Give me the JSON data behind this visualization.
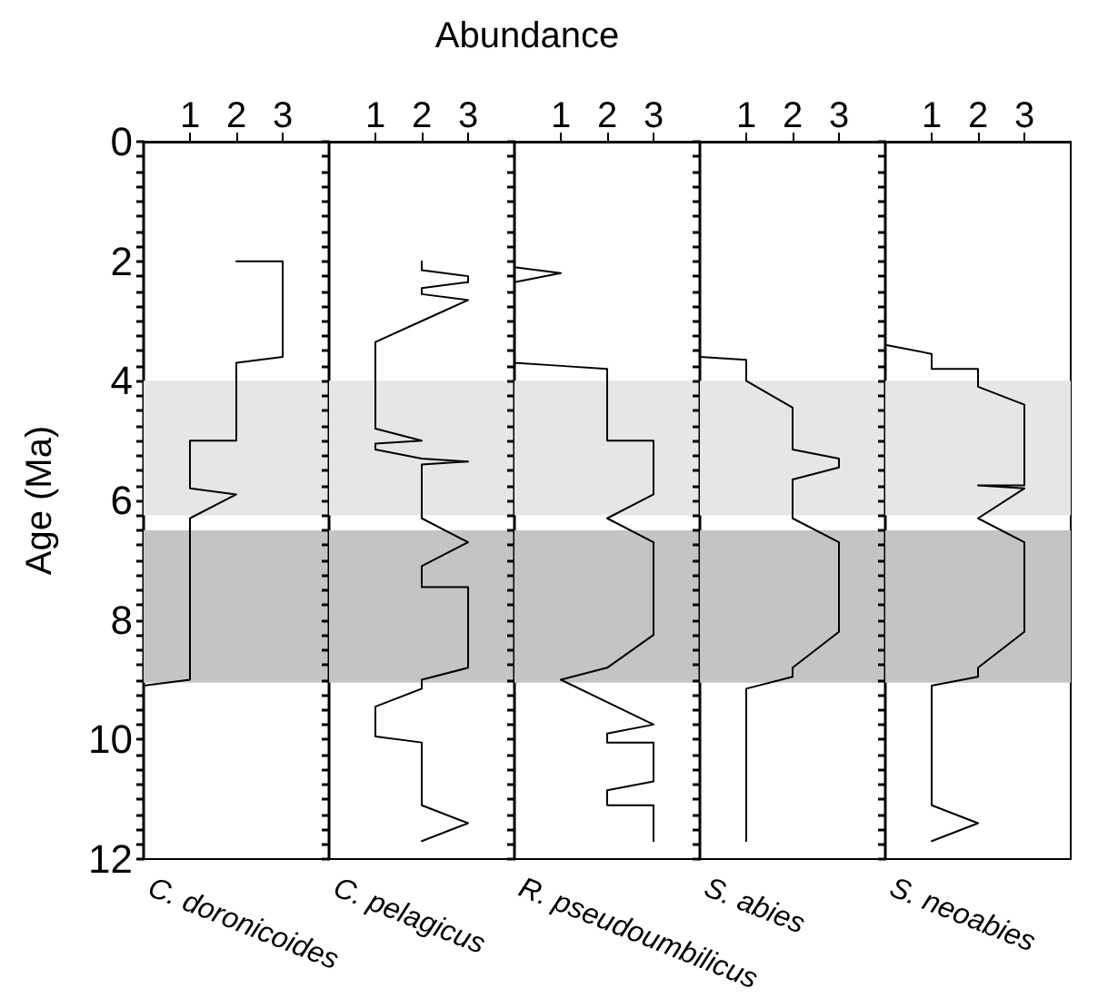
{
  "chart_data": [
    {
      "type": "line",
      "title": "C. doronicoides",
      "ylabel": "Age (Ma)",
      "xlim": [
        0,
        4
      ],
      "xticks": [
        1,
        2,
        3
      ],
      "ylim": [
        12,
        0
      ],
      "grid": false,
      "marker": "none",
      "line_style": "solid",
      "yticks": [
        0,
        {
          "value": 0.25,
          "label": null
        },
        {
          "value": 0.5,
          "label": null
        },
        {
          "value": 0.75,
          "label": null
        },
        {
          "value": 1,
          "label": null
        },
        {
          "value": 1.25,
          "label": null
        },
        {
          "value": 1.5,
          "label": null
        },
        {
          "value": 1.75,
          "label": null
        },
        2,
        {
          "value": 2.25,
          "label": null
        },
        {
          "value": 2.5,
          "label": null
        },
        {
          "value": 2.75,
          "label": null
        },
        {
          "value": 3,
          "label": null
        },
        {
          "value": 3.25,
          "label": null
        },
        {
          "value": 3.5,
          "label": null
        },
        {
          "value": 3.75,
          "label": null
        },
        4,
        {
          "value": 4.25,
          "label": null
        },
        {
          "value": 4.5,
          "label": null
        },
        {
          "value": 4.75,
          "label": null
        },
        {
          "value": 5,
          "label": null
        },
        {
          "value": 5.25,
          "label": null
        },
        {
          "value": 5.5,
          "label": null
        },
        {
          "value": 5.75,
          "label": null
        },
        6,
        {
          "value": 6.25,
          "label": null
        },
        {
          "value": 6.5,
          "label": null
        },
        {
          "value": 6.75,
          "label": null
        },
        {
          "value": 7,
          "label": null
        },
        {
          "value": 7.25,
          "label": null
        },
        {
          "value": 7.5,
          "label": null
        },
        {
          "value": 7.75,
          "label": null
        },
        8,
        {
          "value": 8.25,
          "label": null
        },
        {
          "value": 8.5,
          "label": null
        },
        {
          "value": 8.75,
          "label": null
        },
        {
          "value": 9,
          "label": null
        },
        {
          "value": 9.25,
          "label": null
        },
        {
          "value": 9.5,
          "label": null
        },
        {
          "value": 9.75,
          "label": null
        },
        10,
        {
          "value": 10.25,
          "label": null
        },
        {
          "value": 10.5,
          "label": null
        },
        {
          "value": 10.75,
          "label": null
        },
        {
          "value": 11,
          "label": null
        },
        {
          "value": 11.25,
          "label": null
        },
        {
          "value": 11.5,
          "label": null
        },
        {
          "value": 11.75,
          "label": null
        },
        12
      ],
      "bands": [
        {
          "axis": "y",
          "from": 4.0,
          "to": 6.25,
          "color": "#e6e6e6"
        },
        {
          "axis": "y",
          "from": 6.5,
          "to": 9.05,
          "color": "#c4c4c4"
        }
      ],
      "series": [
        {
          "color": "#000000",
          "x": [
            2,
            3,
            3,
            2,
            2,
            1,
            1,
            2,
            1,
            1,
            0
          ],
          "values": [
            2.0,
            2.0,
            3.6,
            3.7,
            5.0,
            5.0,
            5.8,
            5.9,
            6.3,
            9.0,
            9.1
          ]
        }
      ]
    },
    {
      "type": "line",
      "title": "C. pelagicus",
      "tick_labels": "x",
      "xlim": [
        0,
        4
      ],
      "xticks": [
        1,
        2,
        3
      ],
      "ylim": [
        12,
        0
      ],
      "grid": false,
      "marker": "none",
      "line_style": "solid",
      "yticks": [
        0,
        {
          "value": 0.25,
          "label": null
        },
        {
          "value": 0.5,
          "label": null
        },
        {
          "value": 0.75,
          "label": null
        },
        {
          "value": 1,
          "label": null
        },
        {
          "value": 1.25,
          "label": null
        },
        {
          "value": 1.5,
          "label": null
        },
        {
          "value": 1.75,
          "label": null
        },
        2,
        {
          "value": 2.25,
          "label": null
        },
        {
          "value": 2.5,
          "label": null
        },
        {
          "value": 2.75,
          "label": null
        },
        {
          "value": 3,
          "label": null
        },
        {
          "value": 3.25,
          "label": null
        },
        {
          "value": 3.5,
          "label": null
        },
        {
          "value": 3.75,
          "label": null
        },
        4,
        {
          "value": 4.25,
          "label": null
        },
        {
          "value": 4.5,
          "label": null
        },
        {
          "value": 4.75,
          "label": null
        },
        {
          "value": 5,
          "label": null
        },
        {
          "value": 5.25,
          "label": null
        },
        {
          "value": 5.5,
          "label": null
        },
        {
          "value": 5.75,
          "label": null
        },
        6,
        {
          "value": 6.25,
          "label": null
        },
        {
          "value": 6.5,
          "label": null
        },
        {
          "value": 6.75,
          "label": null
        },
        {
          "value": 7,
          "label": null
        },
        {
          "value": 7.25,
          "label": null
        },
        {
          "value": 7.5,
          "label": null
        },
        {
          "value": 7.75,
          "label": null
        },
        8,
        {
          "value": 8.25,
          "label": null
        },
        {
          "value": 8.5,
          "label": null
        },
        {
          "value": 8.75,
          "label": null
        },
        {
          "value": 9,
          "label": null
        },
        {
          "value": 9.25,
          "label": null
        },
        {
          "value": 9.5,
          "label": null
        },
        {
          "value": 9.75,
          "label": null
        },
        10,
        {
          "value": 10.25,
          "label": null
        },
        {
          "value": 10.5,
          "label": null
        },
        {
          "value": 10.75,
          "label": null
        },
        {
          "value": 11,
          "label": null
        },
        {
          "value": 11.25,
          "label": null
        },
        {
          "value": 11.5,
          "label": null
        },
        {
          "value": 11.75,
          "label": null
        },
        12
      ],
      "bands": [
        {
          "axis": "y",
          "from": 4.0,
          "to": 6.25,
          "color": "#e6e6e6"
        },
        {
          "axis": "y",
          "from": 6.5,
          "to": 9.05,
          "color": "#c4c4c4"
        }
      ],
      "series": [
        {
          "color": "#000000",
          "x": [
            2,
            2,
            3,
            3,
            2,
            2,
            3,
            2,
            1,
            1,
            2,
            1,
            1,
            2,
            3,
            2,
            2,
            3,
            2,
            2,
            3,
            3,
            2,
            2,
            1,
            1,
            2,
            2,
            3,
            2
          ],
          "values": [
            2.0,
            2.15,
            2.25,
            2.35,
            2.45,
            2.55,
            2.65,
            3.0,
            3.35,
            4.8,
            5.0,
            5.05,
            5.15,
            5.3,
            5.35,
            5.4,
            6.3,
            6.7,
            7.1,
            7.45,
            7.45,
            8.8,
            9.0,
            9.15,
            9.45,
            9.95,
            10.05,
            11.1,
            11.4,
            11.7
          ]
        }
      ]
    },
    {
      "type": "line",
      "title": "R. pseudoumbilicus",
      "xlabel": "Abundance",
      "tick_labels": "x",
      "xlim": [
        0,
        4
      ],
      "xticks": [
        1,
        2,
        3
      ],
      "ylim": [
        12,
        0
      ],
      "grid": false,
      "marker": "none",
      "line_style": "solid",
      "yticks": [
        0,
        {
          "value": 0.25,
          "label": null
        },
        {
          "value": 0.5,
          "label": null
        },
        {
          "value": 0.75,
          "label": null
        },
        {
          "value": 1,
          "label": null
        },
        {
          "value": 1.25,
          "label": null
        },
        {
          "value": 1.5,
          "label": null
        },
        {
          "value": 1.75,
          "label": null
        },
        2,
        {
          "value": 2.25,
          "label": null
        },
        {
          "value": 2.5,
          "label": null
        },
        {
          "value": 2.75,
          "label": null
        },
        {
          "value": 3,
          "label": null
        },
        {
          "value": 3.25,
          "label": null
        },
        {
          "value": 3.5,
          "label": null
        },
        {
          "value": 3.75,
          "label": null
        },
        4,
        {
          "value": 4.25,
          "label": null
        },
        {
          "value": 4.5,
          "label": null
        },
        {
          "value": 4.75,
          "label": null
        },
        {
          "value": 5,
          "label": null
        },
        {
          "value": 5.25,
          "label": null
        },
        {
          "value": 5.5,
          "label": null
        },
        {
          "value": 5.75,
          "label": null
        },
        6,
        {
          "value": 6.25,
          "label": null
        },
        {
          "value": 6.5,
          "label": null
        },
        {
          "value": 6.75,
          "label": null
        },
        {
          "value": 7,
          "label": null
        },
        {
          "value": 7.25,
          "label": null
        },
        {
          "value": 7.5,
          "label": null
        },
        {
          "value": 7.75,
          "label": null
        },
        8,
        {
          "value": 8.25,
          "label": null
        },
        {
          "value": 8.5,
          "label": null
        },
        {
          "value": 8.75,
          "label": null
        },
        {
          "value": 9,
          "label": null
        },
        {
          "value": 9.25,
          "label": null
        },
        {
          "value": 9.5,
          "label": null
        },
        {
          "value": 9.75,
          "label": null
        },
        10,
        {
          "value": 10.25,
          "label": null
        },
        {
          "value": 10.5,
          "label": null
        },
        {
          "value": 10.75,
          "label": null
        },
        {
          "value": 11,
          "label": null
        },
        {
          "value": 11.25,
          "label": null
        },
        {
          "value": 11.5,
          "label": null
        },
        {
          "value": 11.75,
          "label": null
        },
        12
      ],
      "bands": [
        {
          "axis": "y",
          "from": 4.0,
          "to": 6.25,
          "color": "#e6e6e6"
        },
        {
          "axis": "y",
          "from": 6.5,
          "to": 9.05,
          "color": "#c4c4c4"
        }
      ],
      "series": [
        {
          "color": "#000000",
          "x": [
            0,
            1,
            0,
            0,
            1,
            2,
            2,
            3,
            3,
            2,
            3,
            3,
            2,
            1,
            3,
            2,
            2,
            3,
            3,
            2,
            2,
            3,
            3
          ],
          "values": [
            2.1,
            2.2,
            2.35,
            3.7,
            3.75,
            3.8,
            5.0,
            5.0,
            5.9,
            6.3,
            6.7,
            8.25,
            8.8,
            9.0,
            9.75,
            9.9,
            10.05,
            10.05,
            10.7,
            10.85,
            11.1,
            11.1,
            11.7
          ]
        }
      ]
    },
    {
      "type": "line",
      "title": "S. abies",
      "tick_labels": "x",
      "xlim": [
        0,
        4
      ],
      "xticks": [
        1,
        2,
        3
      ],
      "ylim": [
        12,
        0
      ],
      "grid": false,
      "marker": "none",
      "line_style": "solid",
      "yticks": [
        0,
        {
          "value": 0.25,
          "label": null
        },
        {
          "value": 0.5,
          "label": null
        },
        {
          "value": 0.75,
          "label": null
        },
        {
          "value": 1,
          "label": null
        },
        {
          "value": 1.25,
          "label": null
        },
        {
          "value": 1.5,
          "label": null
        },
        {
          "value": 1.75,
          "label": null
        },
        2,
        {
          "value": 2.25,
          "label": null
        },
        {
          "value": 2.5,
          "label": null
        },
        {
          "value": 2.75,
          "label": null
        },
        {
          "value": 3,
          "label": null
        },
        {
          "value": 3.25,
          "label": null
        },
        {
          "value": 3.5,
          "label": null
        },
        {
          "value": 3.75,
          "label": null
        },
        4,
        {
          "value": 4.25,
          "label": null
        },
        {
          "value": 4.5,
          "label": null
        },
        {
          "value": 4.75,
          "label": null
        },
        {
          "value": 5,
          "label": null
        },
        {
          "value": 5.25,
          "label": null
        },
        {
          "value": 5.5,
          "label": null
        },
        {
          "value": 5.75,
          "label": null
        },
        6,
        {
          "value": 6.25,
          "label": null
        },
        {
          "value": 6.5,
          "label": null
        },
        {
          "value": 6.75,
          "label": null
        },
        {
          "value": 7,
          "label": null
        },
        {
          "value": 7.25,
          "label": null
        },
        {
          "value": 7.5,
          "label": null
        },
        {
          "value": 7.75,
          "label": null
        },
        8,
        {
          "value": 8.25,
          "label": null
        },
        {
          "value": 8.5,
          "label": null
        },
        {
          "value": 8.75,
          "label": null
        },
        {
          "value": 9,
          "label": null
        },
        {
          "value": 9.25,
          "label": null
        },
        {
          "value": 9.5,
          "label": null
        },
        {
          "value": 9.75,
          "label": null
        },
        10,
        {
          "value": 10.25,
          "label": null
        },
        {
          "value": 10.5,
          "label": null
        },
        {
          "value": 10.75,
          "label": null
        },
        {
          "value": 11,
          "label": null
        },
        {
          "value": 11.25,
          "label": null
        },
        {
          "value": 11.5,
          "label": null
        },
        {
          "value": 11.75,
          "label": null
        },
        12
      ],
      "bands": [
        {
          "axis": "y",
          "from": 4.0,
          "to": 6.25,
          "color": "#e6e6e6"
        },
        {
          "axis": "y",
          "from": 6.5,
          "to": 9.05,
          "color": "#c4c4c4"
        }
      ],
      "series": [
        {
          "color": "#000000",
          "x": [
            0,
            1,
            1,
            2,
            2,
            3,
            3,
            2,
            2,
            3,
            3,
            2,
            2,
            1,
            1
          ],
          "values": [
            3.6,
            3.65,
            4.0,
            4.45,
            5.15,
            5.3,
            5.45,
            5.65,
            6.3,
            6.7,
            8.2,
            8.8,
            8.95,
            9.15,
            11.7
          ]
        }
      ]
    },
    {
      "type": "line",
      "title": "S. neoabies",
      "tick_labels": "x",
      "xlim": [
        0,
        4
      ],
      "xticks": [
        1,
        2,
        3
      ],
      "ylim": [
        12,
        0
      ],
      "grid": false,
      "marker": "none",
      "line_style": "solid",
      "yticks": [
        0,
        {
          "value": 0.25,
          "label": null
        },
        {
          "value": 0.5,
          "label": null
        },
        {
          "value": 0.75,
          "label": null
        },
        {
          "value": 1,
          "label": null
        },
        {
          "value": 1.25,
          "label": null
        },
        {
          "value": 1.5,
          "label": null
        },
        {
          "value": 1.75,
          "label": null
        },
        2,
        {
          "value": 2.25,
          "label": null
        },
        {
          "value": 2.5,
          "label": null
        },
        {
          "value": 2.75,
          "label": null
        },
        {
          "value": 3,
          "label": null
        },
        {
          "value": 3.25,
          "label": null
        },
        {
          "value": 3.5,
          "label": null
        },
        {
          "value": 3.75,
          "label": null
        },
        4,
        {
          "value": 4.25,
          "label": null
        },
        {
          "value": 4.5,
          "label": null
        },
        {
          "value": 4.75,
          "label": null
        },
        {
          "value": 5,
          "label": null
        },
        {
          "value": 5.25,
          "label": null
        },
        {
          "value": 5.5,
          "label": null
        },
        {
          "value": 5.75,
          "label": null
        },
        6,
        {
          "value": 6.25,
          "label": null
        },
        {
          "value": 6.5,
          "label": null
        },
        {
          "value": 6.75,
          "label": null
        },
        {
          "value": 7,
          "label": null
        },
        {
          "value": 7.25,
          "label": null
        },
        {
          "value": 7.5,
          "label": null
        },
        {
          "value": 7.75,
          "label": null
        },
        8,
        {
          "value": 8.25,
          "label": null
        },
        {
          "value": 8.5,
          "label": null
        },
        {
          "value": 8.75,
          "label": null
        },
        {
          "value": 9,
          "label": null
        },
        {
          "value": 9.25,
          "label": null
        },
        {
          "value": 9.5,
          "label": null
        },
        {
          "value": 9.75,
          "label": null
        },
        10,
        {
          "value": 10.25,
          "label": null
        },
        {
          "value": 10.5,
          "label": null
        },
        {
          "value": 10.75,
          "label": null
        },
        {
          "value": 11,
          "label": null
        },
        {
          "value": 11.25,
          "label": null
        },
        {
          "value": 11.5,
          "label": null
        },
        {
          "value": 11.75,
          "label": null
        },
        12
      ],
      "bands": [
        {
          "axis": "y",
          "from": 4.0,
          "to": 6.25,
          "color": "#e6e6e6"
        },
        {
          "axis": "y",
          "from": 6.5,
          "to": 9.05,
          "color": "#c4c4c4"
        }
      ],
      "series": [
        {
          "color": "#000000",
          "x": [
            0,
            1,
            1,
            2,
            2,
            3,
            3,
            2,
            3,
            2,
            3,
            3,
            2,
            2,
            1,
            1,
            2,
            1
          ],
          "values": [
            3.4,
            3.55,
            3.8,
            3.8,
            4.1,
            4.4,
            5.75,
            5.75,
            5.8,
            6.3,
            6.7,
            8.2,
            8.8,
            8.95,
            9.1,
            11.1,
            11.4,
            11.7
          ]
        }
      ]
    }
  ]
}
